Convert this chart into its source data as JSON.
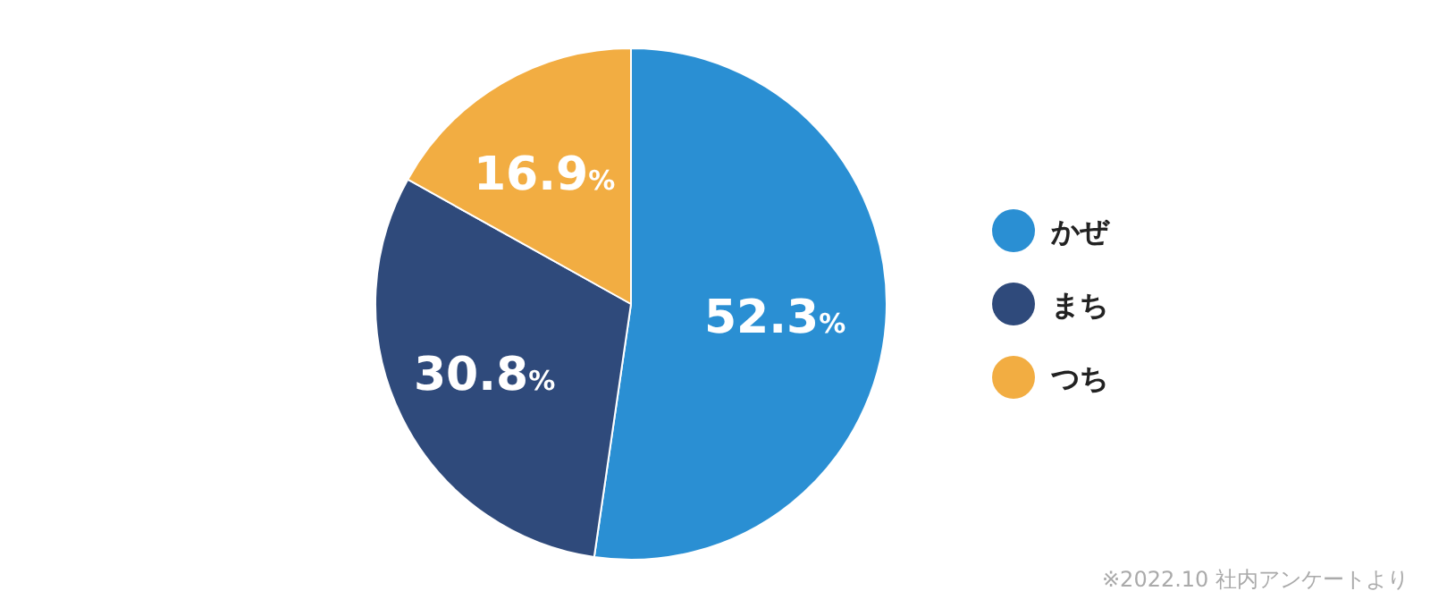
{
  "chart_data": {
    "type": "pie",
    "categories": [
      "かぜ",
      "まち",
      "つち"
    ],
    "values": [
      52.3,
      30.8,
      16.9
    ],
    "colors": [
      "#2a8fd3",
      "#2f4a7b",
      "#f2ad42"
    ],
    "value_labels": [
      "52.3%",
      "30.8%",
      "16.9%"
    ],
    "legend": "right",
    "annotations": [
      "※2022.10 社内アンケートより"
    ]
  }
}
